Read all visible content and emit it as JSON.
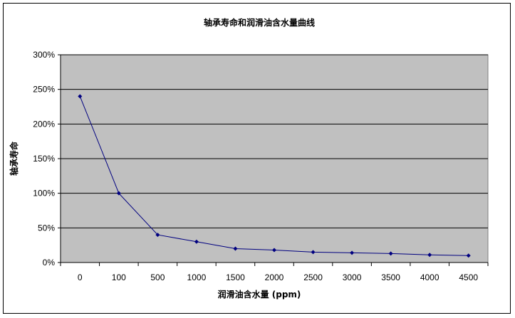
{
  "chart_data": {
    "type": "line",
    "title": "轴承寿命和润滑油含水量曲线",
    "xlabel": "润滑油含水量 (ppm)",
    "ylabel": "轴承寿命",
    "categories": [
      "0",
      "100",
      "500",
      "1000",
      "1500",
      "2000",
      "2500",
      "3000",
      "3500",
      "4000",
      "4500"
    ],
    "series": [
      {
        "values": [
          240,
          100,
          40,
          30,
          20,
          18,
          15,
          14,
          13,
          11,
          10
        ]
      }
    ],
    "ylim": [
      0,
      300
    ],
    "yticks": [
      "0%",
      "50%",
      "100%",
      "150%",
      "200%",
      "250%",
      "300%"
    ],
    "grid": true,
    "legend": "none",
    "colors": {
      "plot_background": "#c0c0c0",
      "line": "#000080",
      "gridline": "#000000"
    }
  }
}
